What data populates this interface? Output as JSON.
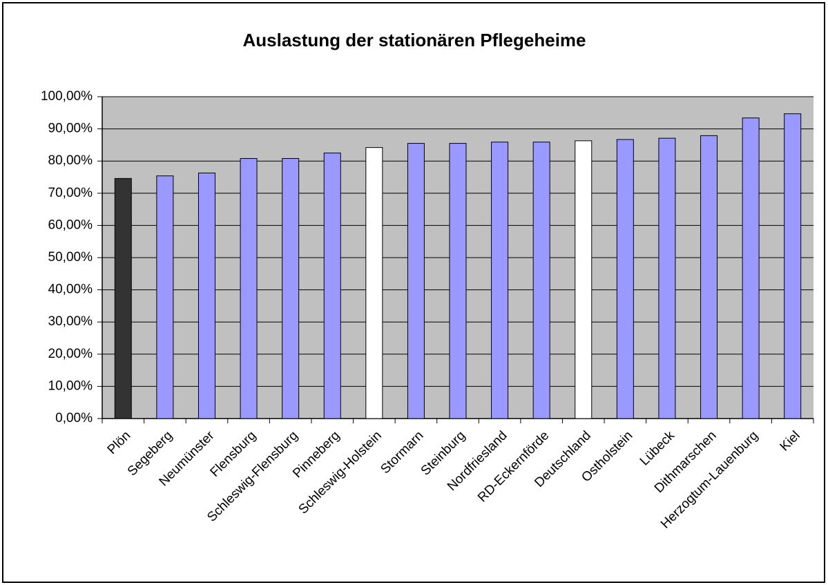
{
  "chart_data": {
    "type": "bar",
    "title": "Auslastung der stationären Pflegeheime",
    "categories": [
      "Plön",
      "Segeberg",
      "Neumünster",
      "Flensburg",
      "Schleswig-Flensburg",
      "Pinneberg",
      "Schleswig-Holstein",
      "Stormarn",
      "Steinburg",
      "Nordfriesland",
      "RD-Eckernförde",
      "Deutschland",
      "Ostholstein",
      "Lübeck",
      "Dithmarschen",
      "Herzogtum-Lauenburg",
      "Kiel"
    ],
    "values": [
      74.6,
      75.4,
      76.3,
      80.8,
      80.8,
      82.5,
      84.2,
      85.5,
      85.5,
      85.9,
      85.9,
      86.3,
      86.7,
      87.1,
      87.9,
      93.4,
      94.7
    ],
    "colors": [
      "#333333",
      "#9999ff",
      "#9999ff",
      "#9999ff",
      "#9999ff",
      "#9999ff",
      "#ffffff",
      "#9999ff",
      "#9999ff",
      "#9999ff",
      "#9999ff",
      "#ffffff",
      "#9999ff",
      "#9999ff",
      "#9999ff",
      "#9999ff",
      "#9999ff"
    ],
    "ylim": [
      0,
      100
    ],
    "yticks": [
      {
        "value": 0,
        "label": "0,00%"
      },
      {
        "value": 10,
        "label": "10,00%"
      },
      {
        "value": 20,
        "label": "20,00%"
      },
      {
        "value": 30,
        "label": "30,00%"
      },
      {
        "value": 40,
        "label": "40,00%"
      },
      {
        "value": 50,
        "label": "50,00%"
      },
      {
        "value": 60,
        "label": "60,00%"
      },
      {
        "value": 70,
        "label": "70,00%"
      },
      {
        "value": 80,
        "label": "80,00%"
      },
      {
        "value": 90,
        "label": "90,00%"
      },
      {
        "value": 100,
        "label": "100,00%"
      }
    ],
    "grid": true
  }
}
